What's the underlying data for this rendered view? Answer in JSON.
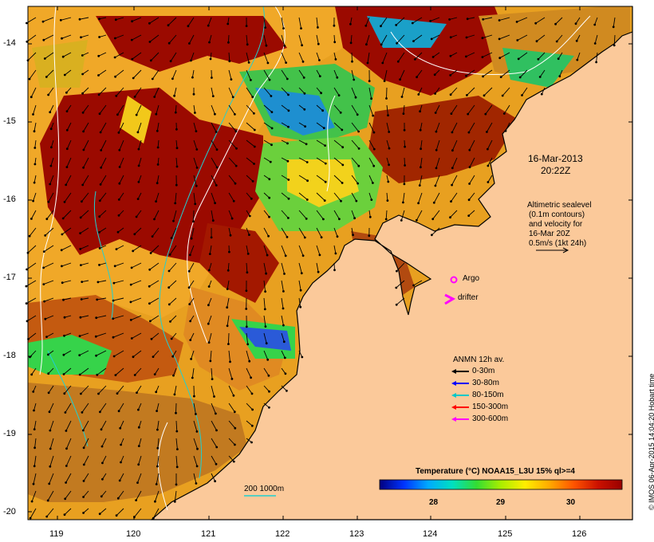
{
  "map": {
    "date_label": "16-Mar-2013",
    "time_label": "20:22Z",
    "altimetry_text": [
      "Altimetric sealevel",
      "(0.1m contours)",
      "and velocity for",
      "16-Mar 20Z",
      "0.5m/s (1kt 24h)"
    ],
    "argo_label": "Argo",
    "drifter_label": "drifter",
    "bathymetry_label": "200  1000m",
    "y_ticks": [
      "-14",
      "-15",
      "-16",
      "-17",
      "-18",
      "-19",
      "-20"
    ],
    "x_ticks": [
      "119",
      "120",
      "121",
      "122",
      "123",
      "124",
      "125",
      "126"
    ],
    "credit": "© IMOS 06-Apr-2015 14:04:20 Hobart time"
  },
  "anmn_legend": {
    "title": "ANMN 12h av.",
    "items": [
      {
        "label": "0-30m",
        "color": "#000000"
      },
      {
        "label": "30-80m",
        "color": "#0000ff"
      },
      {
        "label": "80-150m",
        "color": "#00c8c8"
      },
      {
        "label": "150-300m",
        "color": "#ff0000"
      },
      {
        "label": "300-600m",
        "color": "#ff00ff"
      }
    ]
  },
  "colorbar": {
    "title": "Temperature (°C) NOAA15_L3U 15% ql>=4",
    "ticks": [
      "28",
      "29",
      "30"
    ],
    "colors": [
      "#00007f",
      "#0033ff",
      "#00aaff",
      "#00e0c0",
      "#33dd33",
      "#aaee00",
      "#ffee00",
      "#ffaa00",
      "#ff5500",
      "#cc1100",
      "#990000"
    ]
  },
  "colors": {
    "land": "#fbc99a",
    "hot": "#9b0a00",
    "warm": "#c45a10",
    "orange": "#f09a1c",
    "yellow": "#f5d000",
    "green": "#36d34a",
    "cyan": "#10c8b0",
    "blue": "#1a40d0"
  }
}
